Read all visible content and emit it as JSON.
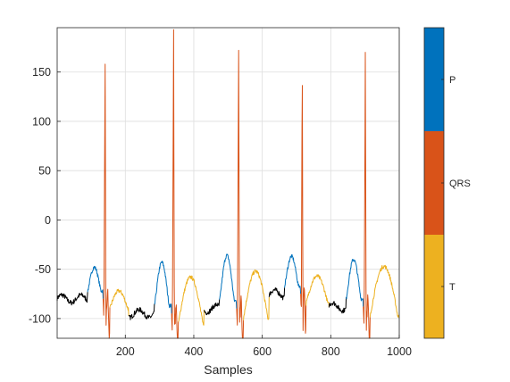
{
  "chart_data": {
    "type": "line",
    "title": "",
    "xlabel": "Samples",
    "ylabel": "",
    "xlim": [
      1,
      1000
    ],
    "ylim": [
      -120,
      195
    ],
    "xticks": [
      200,
      400,
      600,
      800,
      1000
    ],
    "yticks": [
      -100,
      -50,
      0,
      50,
      100,
      150
    ],
    "grid": true,
    "legend": "colorbar-right",
    "series": [
      {
        "name": "P",
        "color": "#0072BD"
      },
      {
        "name": "QRS",
        "color": "#D95319"
      },
      {
        "name": "T",
        "color": "#EDB120"
      }
    ],
    "unlabeled_color": "#000000",
    "beats": [
      {
        "baseline_before": -80,
        "p_start": 90,
        "p_peak": -48,
        "qrs_start": 135,
        "qrs_peak": 158,
        "qrs_min": -118,
        "t_start": 155,
        "t_peak": -72,
        "t_end": 210
      },
      {
        "baseline_before": -95,
        "p_start": 285,
        "p_peak": -43,
        "qrs_start": 335,
        "qrs_peak": 193,
        "qrs_min": -117,
        "t_start": 355,
        "t_peak": -58,
        "t_end": 430
      },
      {
        "baseline_before": -90,
        "p_start": 475,
        "p_peak": -36,
        "qrs_start": 525,
        "qrs_peak": 172,
        "qrs_min": -110,
        "t_start": 545,
        "t_peak": -52,
        "t_end": 620
      },
      {
        "baseline_before": -75,
        "p_start": 665,
        "p_peak": -37,
        "qrs_start": 712,
        "qrs_peak": 166,
        "qrs_min": -118,
        "t_start": 728,
        "t_peak": -57,
        "t_end": 795
      },
      {
        "baseline_before": -88,
        "p_start": 845,
        "p_peak": -40,
        "qrs_start": 895,
        "qrs_peak": 170,
        "qrs_min": -118,
        "t_start": 915,
        "t_peak": -47,
        "t_end": 1000
      }
    ],
    "colorbar": {
      "labels": [
        "P",
        "QRS",
        "T"
      ],
      "colors": [
        "#0072BD",
        "#D95319",
        "#EDB120"
      ]
    }
  }
}
